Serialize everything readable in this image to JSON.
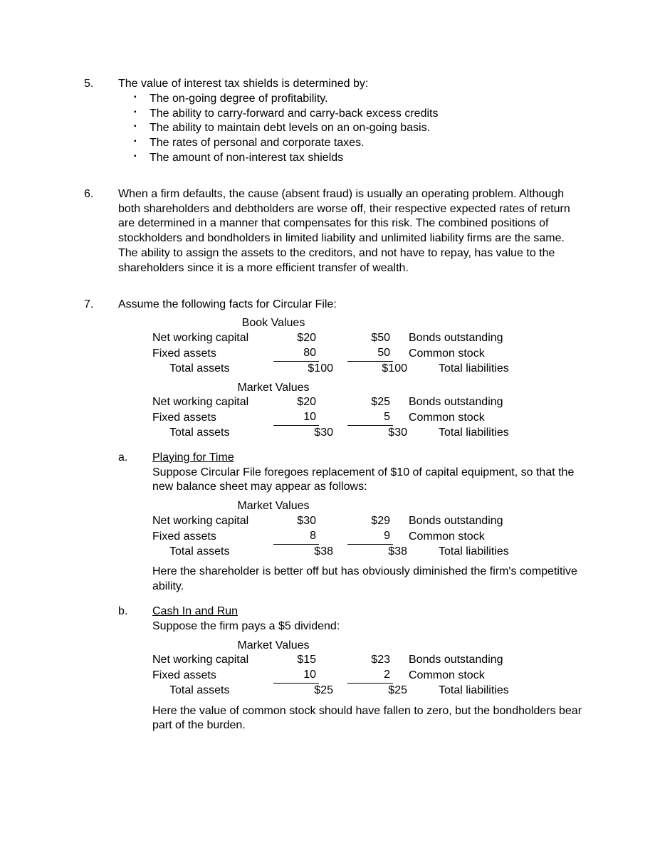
{
  "q5": {
    "num": "5.",
    "lead": "The value of interest tax shields is determined by:",
    "bullets": [
      "The on-going degree of profitability.",
      "The ability to carry-forward and carry-back excess credits",
      "The ability to maintain debt levels on an on-going basis.",
      "The rates of personal and corporate taxes.",
      "The amount of non-interest tax shields"
    ]
  },
  "q6": {
    "num": "6.",
    "text": "When a firm defaults, the cause (absent fraud) is usually an operating problem. Although both shareholders and debtholders are worse off, their respective expected rates of return are determined in a manner that compensates for this risk.  The combined positions of stockholders and bondholders in limited liability and unlimited liability firms are the same.  The ability to assign the assets to the creditors, and not have to repay, has value to the shareholders since it is a more efficient transfer of wealth."
  },
  "q7": {
    "num": "7.",
    "lead": "Assume the following facts for Circular File:",
    "bs1": {
      "title": "Book Values",
      "r1": {
        "ll": "Net working capital",
        "lv": "$20",
        "rv": "$50",
        "rl": "Bonds outstanding"
      },
      "r2": {
        "ll": "Fixed assets",
        "lv": "80",
        "rv": "50",
        "rl": "Common stock"
      },
      "r3": {
        "ll": "Total assets",
        "lv": "$100",
        "rv": "$100",
        "rl": "Total liabilities"
      }
    },
    "bs2": {
      "title": "Market Values",
      "r1": {
        "ll": "Net working capital",
        "lv": "$20",
        "rv": "$25",
        "rl": "Bonds outstanding"
      },
      "r2": {
        "ll": "Fixed assets",
        "lv": "10",
        "rv": "5",
        "rl": "Common stock"
      },
      "r3": {
        "ll": "Total assets",
        "lv": "$30",
        "rv": "$30",
        "rl": "Total liabilities"
      }
    },
    "a": {
      "label": "a.",
      "title": "Playing for Time",
      "intro": "Suppose Circular File foregoes replacement of $10 of capital equipment, so that the new balance sheet may appear as follows:",
      "bs": {
        "title": "Market Values",
        "r1": {
          "ll": "Net working capital",
          "lv": "$30",
          "rv": "$29",
          "rl": "Bonds outstanding"
        },
        "r2": {
          "ll": "Fixed assets",
          "lv": "8",
          "rv": "9",
          "rl": "Common stock"
        },
        "r3": {
          "ll": "Total assets",
          "lv": "$38",
          "rv": "$38",
          "rl": "Total liabilities"
        }
      },
      "outro": "Here the shareholder is better off but has obviously diminished the firm's competitive ability."
    },
    "b": {
      "label": "b.",
      "title": "Cash In and Run",
      "intro": "Suppose the firm pays a $5 dividend:",
      "bs": {
        "title": "Market Values",
        "r1": {
          "ll": "Net working capital",
          "lv": "$15",
          "rv": "$23",
          "rl": "Bonds outstanding"
        },
        "r2": {
          "ll": "Fixed assets",
          "lv": "10",
          "rv": "2",
          "rl": "Common stock"
        },
        "r3": {
          "ll": "Total assets",
          "lv": "$25",
          "rv": "$25",
          "rl": "Total liabilities"
        }
      },
      "outro": "Here the value of common stock should have fallen to zero, but the bondholders bear part of the burden."
    }
  }
}
